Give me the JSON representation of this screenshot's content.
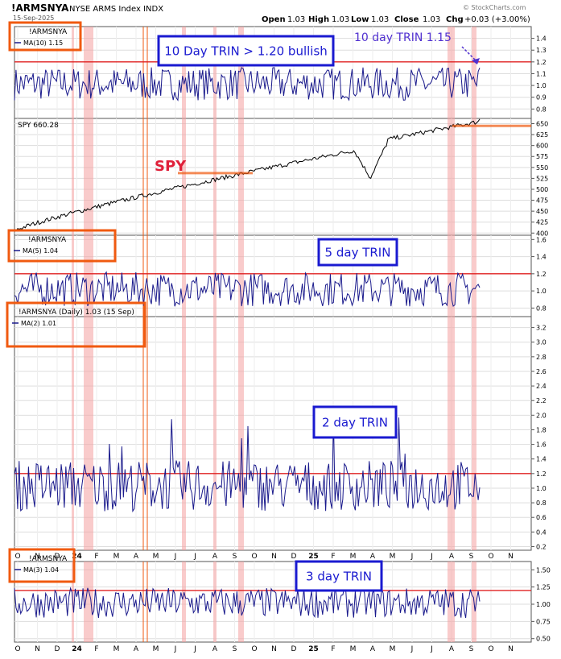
{
  "header": {
    "symbol": "!ARMSNYA",
    "name": "NYSE ARMS Index  INDX",
    "date": "15-Sep-2025",
    "open_label": "Open",
    "open": "1.03",
    "high_label": "High",
    "high": "1.03",
    "low_label": "Low",
    "low": "1.03",
    "close_label": "Close",
    "close": "1.03",
    "chg_label": "Chg",
    "chg": "+0.03 (+3.00%)",
    "watermark": "© StockCharts.com"
  },
  "colors": {
    "trin_line": "#1a1a8c",
    "threshold": "#e02020",
    "highlight": "#f4a0a0",
    "orange_box": "#f05a10",
    "blue_box": "#1a1ad0",
    "callout_text": "#5030d0",
    "spy_label": "#e0203a",
    "grid": "#dddddd"
  },
  "months_row_1": [
    "O",
    "N",
    "D",
    "24",
    "F",
    "M",
    "A",
    "M",
    "J",
    "J",
    "A",
    "S",
    "O",
    "N",
    "D",
    "25",
    "F",
    "M",
    "A",
    "M",
    "J",
    "J",
    "A",
    "S",
    "O",
    "N"
  ],
  "months_row_2": [
    "O",
    "N",
    "D",
    "24",
    "F",
    "M",
    "A",
    "M",
    "J",
    "J",
    "A",
    "S",
    "O",
    "N",
    "D",
    "25",
    "F",
    "M",
    "A",
    "M",
    "J",
    "J",
    "A",
    "S",
    "O",
    "N"
  ],
  "chart_data": [
    {
      "type": "line",
      "panel": "10-day",
      "legend_title": "!ARMSNYA",
      "legend_series": "MA(10) 1.15",
      "callout": "10 Day TRIN > 1.20 bullish",
      "annotation": "10 day TRIN 1.15",
      "threshold": 1.2,
      "ylim": [
        0.72,
        1.5
      ],
      "yticks": [
        "1.4",
        "1.3",
        "1.2",
        "1.1",
        "1.0",
        "0.9",
        "0.8"
      ],
      "ytick_values": [
        1.4,
        1.3,
        1.2,
        1.1,
        1.0,
        0.9,
        0.8
      ],
      "series": [
        {
          "name": "MA(10) 1.15",
          "last": 1.15
        }
      ]
    },
    {
      "type": "line",
      "panel": "spy",
      "legend_series": "SPY 660.28",
      "label": "SPY",
      "ylim": [
        395,
        662
      ],
      "yticks": [
        "650",
        "625",
        "600",
        "575",
        "550",
        "525",
        "500",
        "475",
        "450",
        "425",
        "400"
      ],
      "ytick_values": [
        650,
        625,
        600,
        575,
        550,
        525,
        500,
        475,
        450,
        425,
        400
      ],
      "series": [
        {
          "name": "SPY 660.28",
          "last": 660.28
        }
      ],
      "reference_levels": [
        537,
        645
      ]
    },
    {
      "type": "line",
      "panel": "5-day",
      "legend_title": "!ARMSNYA",
      "legend_series": "MA(5) 1.04",
      "callout": "5 day TRIN",
      "threshold": 1.2,
      "ylim": [
        0.7,
        1.65
      ],
      "yticks": [
        "1.6",
        "1.4",
        "1.2",
        "1.0",
        "0.8"
      ],
      "ytick_values": [
        1.6,
        1.4,
        1.2,
        1.0,
        0.8
      ],
      "series": [
        {
          "name": "MA(5) 1.04",
          "last": 1.04
        }
      ]
    },
    {
      "type": "line",
      "panel": "2-day",
      "legend_title": "!ARMSNYA (Daily) 1.03 (15 Sep)",
      "legend_series": "MA(2) 1.01",
      "callout": "2 day TRIN",
      "threshold": 1.2,
      "ylim": [
        0.15,
        3.35
      ],
      "yticks": [
        "3.2",
        "3.0",
        "2.8",
        "2.6",
        "2.4",
        "2.2",
        "2.0",
        "1.8",
        "1.6",
        "1.4",
        "1.2",
        "1.0",
        "0.8",
        "0.6",
        "0.4",
        "0.2"
      ],
      "ytick_values": [
        3.2,
        3.0,
        2.8,
        2.6,
        2.4,
        2.2,
        2.0,
        1.8,
        1.6,
        1.4,
        1.2,
        1.0,
        0.8,
        0.6,
        0.4,
        0.2
      ],
      "series": [
        {
          "name": "MA(2) 1.01",
          "last": 1.01
        }
      ]
    },
    {
      "type": "line",
      "panel": "3-day",
      "legend_title": "!ARMSNYA",
      "legend_series": "MA(3) 1.04",
      "callout": "3 day TRIN",
      "threshold": 1.2,
      "ylim": [
        0.45,
        1.62
      ],
      "yticks": [
        "1.50",
        "1.25",
        "1.00",
        "0.75",
        "0.50"
      ],
      "ytick_values": [
        1.5,
        1.25,
        1.0,
        0.75,
        0.5
      ],
      "series": [
        {
          "name": "MA(3) 1.04",
          "last": 1.04
        }
      ]
    }
  ]
}
